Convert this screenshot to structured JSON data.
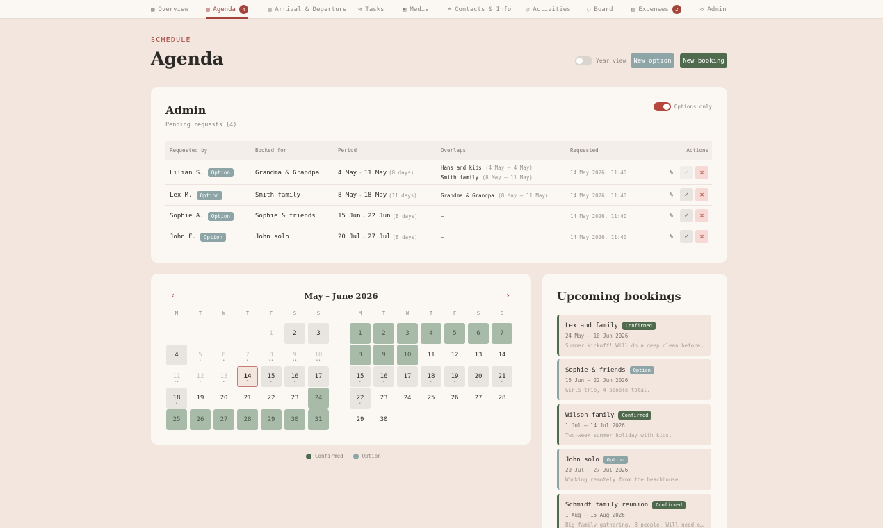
{
  "nav": [
    {
      "label": "Overview",
      "icon": "grid-icon",
      "active": false,
      "badge": ""
    },
    {
      "label": "Agenda",
      "icon": "calendar-icon",
      "active": true,
      "badge": "4"
    },
    {
      "label": "Arrival & Departure",
      "icon": "building-icon",
      "active": false,
      "badge": ""
    },
    {
      "label": "Tasks",
      "icon": "wrench-icon",
      "active": false,
      "badge": ""
    },
    {
      "label": "Media",
      "icon": "image-icon",
      "active": false,
      "badge": ""
    },
    {
      "label": "Contacts & Info",
      "icon": "pin-icon",
      "active": false,
      "badge": ""
    },
    {
      "label": "Activities",
      "icon": "compass-icon",
      "active": false,
      "badge": ""
    },
    {
      "label": "Board",
      "icon": "chat-icon",
      "active": false,
      "badge": ""
    },
    {
      "label": "Expenses",
      "icon": "receipt-icon",
      "active": false,
      "badge": "2"
    },
    {
      "label": "Admin",
      "icon": "shield-icon",
      "active": false,
      "badge": ""
    }
  ],
  "header": {
    "eyebrow": "SCHEDULE",
    "title": "Agenda",
    "year_view_label": "Year view",
    "new_option_label": "New option",
    "new_booking_label": "New booking"
  },
  "admin": {
    "title": "Admin",
    "subtitle": "Pending requests (4)",
    "options_only_label": "Options only",
    "columns": [
      "Requested by",
      "Booked for",
      "Period",
      "Overlaps",
      "Requested",
      "Actions"
    ],
    "rows": [
      {
        "requester": "Lilian S.",
        "badge": "Option",
        "booked_for": "Grandma & Grandpa",
        "period_from": "4 May",
        "period_to": "11 May",
        "days": "(8 days)",
        "overlaps": [
          {
            "name": "Hans and kids",
            "range": "(4 May – 4 May)"
          },
          {
            "name": "Smith family",
            "range": "(8 May – 11 May)"
          }
        ],
        "requested": "14 May 2026, 11:40",
        "approve_disabled": true
      },
      {
        "requester": "Lex M.",
        "badge": "Option",
        "booked_for": "Smith family",
        "period_from": "8 May",
        "period_to": "18 May",
        "days": "(11 days)",
        "overlaps": [
          {
            "name": "Grandma & Grandpa",
            "range": "(8 May – 11 May)"
          }
        ],
        "requested": "14 May 2026, 11:40",
        "approve_disabled": false
      },
      {
        "requester": "Sophie A.",
        "badge": "Option",
        "booked_for": "Sophie & friends",
        "period_from": "15 Jun",
        "period_to": "22 Jun",
        "days": "(8 days)",
        "overlaps": [
          {
            "name": "–",
            "range": ""
          }
        ],
        "requested": "14 May 2026, 11:40",
        "approve_disabled": false
      },
      {
        "requester": "John F.",
        "badge": "Option",
        "booked_for": "John solo",
        "period_from": "20 Jul",
        "period_to": "27 Jul",
        "days": "(8 days)",
        "overlaps": [
          {
            "name": "–",
            "range": ""
          }
        ],
        "requested": "14 May 2026, 11:40",
        "approve_disabled": false
      }
    ]
  },
  "calendar": {
    "title": "May – June 2026",
    "weekdays": [
      "M",
      "T",
      "W",
      "T",
      "F",
      "S",
      "S"
    ],
    "months": [
      {
        "name": "May",
        "first_weekday": 4,
        "days": 31,
        "states": {
          "2": "opt",
          "3": "opt",
          "4": "opt",
          "14": "today",
          "15": "opt",
          "16": "opt",
          "17": "opt",
          "18": "opt",
          "24": "conf",
          "25": "conf",
          "26": "conf",
          "27": "conf",
          "28": "conf",
          "29": "conf",
          "30": "conf",
          "31": "conf"
        },
        "past": [
          1,
          5,
          6,
          7,
          8,
          9,
          10,
          11,
          12,
          13
        ],
        "dots": {
          "5": "•",
          "6": "•",
          "7": "•",
          "8": "••",
          "9": "••",
          "10": "••",
          "11": "••",
          "12": "•",
          "13": "•",
          "14": "•",
          "15": "•",
          "16": "•",
          "17": "•",
          "18": "•"
        }
      },
      {
        "name": "June",
        "first_weekday": 0,
        "days": 30,
        "states": {
          "1": "conf",
          "2": "conf",
          "3": "conf",
          "4": "conf",
          "5": "conf",
          "6": "conf",
          "7": "conf",
          "8": "conf",
          "9": "conf",
          "10": "conf",
          "15": "opt",
          "16": "opt",
          "17": "opt",
          "18": "opt",
          "19": "opt",
          "20": "opt",
          "21": "opt",
          "22": "opt"
        },
        "strike": [
          1
        ],
        "past": [],
        "dots": {
          "15": "•",
          "16": "•",
          "17": "•",
          "18": "•",
          "19": "•",
          "20": "•",
          "21": "•",
          "22": "•"
        }
      }
    ],
    "legend": [
      {
        "label": "Confirmed",
        "color": "#4f6a4c"
      },
      {
        "label": "Option",
        "color": "#8ea5a7"
      }
    ]
  },
  "upcoming": {
    "title": "Upcoming bookings",
    "items": [
      {
        "name": "Lex and family",
        "status": "Confirmed",
        "dates": "24 May — 10 Jun 2026",
        "note": "Summer kickoff! Will do a deep clean before…"
      },
      {
        "name": "Sophie & friends",
        "status": "Option",
        "dates": "15 Jun — 22 Jun 2026",
        "note": "Girls trip, 4 people total."
      },
      {
        "name": "Wilson family",
        "status": "Confirmed",
        "dates": "1 Jul — 14 Jul 2026",
        "note": "Two-week summer holiday with kids."
      },
      {
        "name": "John solo",
        "status": "Option",
        "dates": "20 Jul — 27 Jul 2026",
        "note": "Working remotely from the beachhouse."
      },
      {
        "name": "Schmidt family reunion",
        "status": "Confirmed",
        "dates": "1 Aug — 15 Aug 2026",
        "note": "Big family gathering, 8 people. Will need e…"
      }
    ]
  }
}
